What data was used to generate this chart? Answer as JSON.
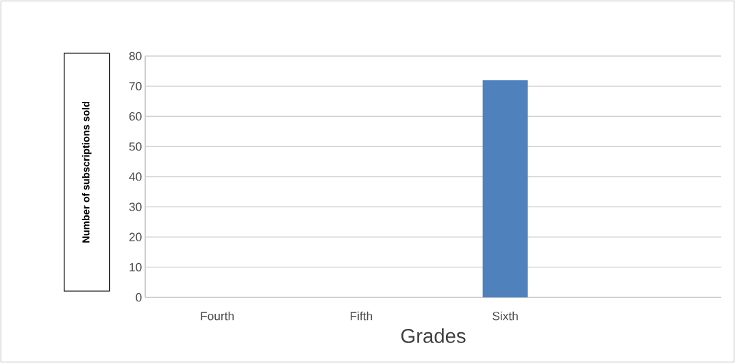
{
  "chart_data": {
    "type": "bar",
    "xlabel": "Grades",
    "ylabel": "Number of  subscriptions sold",
    "categories": [
      "Fourth",
      "Fifth",
      "Sixth",
      null
    ],
    "values": [
      null,
      null,
      72,
      null
    ],
    "color": "#4f81bd",
    "ylim": [
      0,
      80
    ],
    "yticks": [
      0,
      10,
      20,
      30,
      40,
      50,
      60,
      70,
      80
    ],
    "grid": "y"
  }
}
